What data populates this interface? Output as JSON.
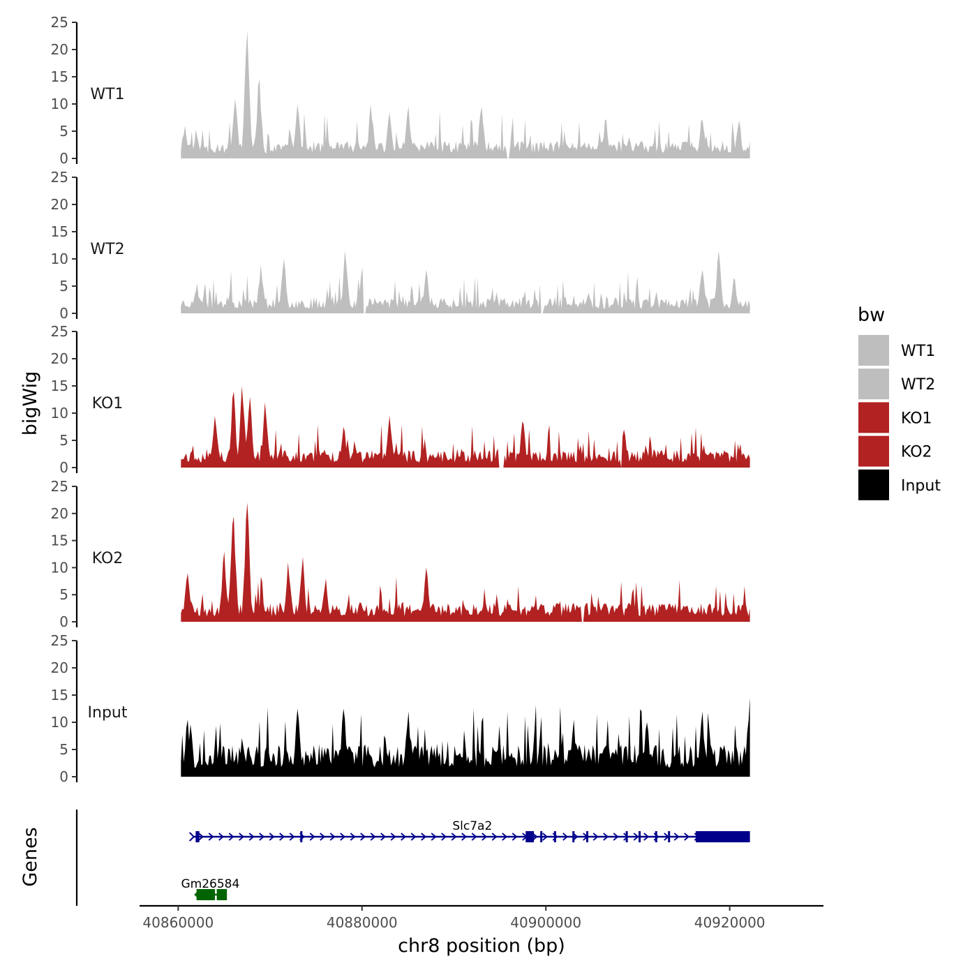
{
  "chart_data": {
    "type": "area",
    "ylabel": "bigWig",
    "genes_label": "Genes",
    "xlabel": "chr8 position (bp)",
    "xlim": [
      40855800,
      40930200
    ],
    "data_range": [
      40860300,
      40922200
    ],
    "x_ticks": [
      40860000,
      40880000,
      40900000,
      40920000
    ],
    "x_tick_labels": [
      "40860000",
      "40880000",
      "40900000",
      "40920000"
    ],
    "ylim": [
      0,
      25
    ],
    "y_ticks": [
      0,
      5,
      10,
      15,
      20,
      25
    ],
    "y_tick_labels": [
      "0",
      "5",
      "10",
      "15",
      "20",
      "25"
    ],
    "legend": {
      "title": "bw",
      "entries": [
        {
          "label": "WT1",
          "color": "#BEBEBE"
        },
        {
          "label": "WT2",
          "color": "#BEBEBE"
        },
        {
          "label": "KO1",
          "color": "#B22222"
        },
        {
          "label": "KO2",
          "color": "#B22222"
        },
        {
          "label": "Input",
          "color": "#000000"
        }
      ]
    },
    "tracks": [
      {
        "name": "WT1",
        "color": "#BEBEBE",
        "seed": 11,
        "base": 2.6,
        "noise": 3.2,
        "peaks": [
          {
            "x": 40867500,
            "y": 23.5
          },
          {
            "x": 40868800,
            "y": 14.5
          },
          {
            "x": 40866200,
            "y": 11
          },
          {
            "x": 40873000,
            "y": 10
          },
          {
            "x": 40881000,
            "y": 10
          },
          {
            "x": 40885000,
            "y": 9.5
          },
          {
            "x": 40893000,
            "y": 9.5
          },
          {
            "x": 40883000,
            "y": 8.5
          },
          {
            "x": 40906500,
            "y": 7
          },
          {
            "x": 40917000,
            "y": 7
          },
          {
            "x": 40921000,
            "y": 7
          },
          {
            "x": 40860700,
            "y": 6
          }
        ],
        "gaps": [
          [
            40895800,
            40896100
          ]
        ]
      },
      {
        "name": "WT2",
        "color": "#BEBEBE",
        "seed": 23,
        "base": 2.4,
        "noise": 3.0,
        "peaks": [
          {
            "x": 40878200,
            "y": 11.5
          },
          {
            "x": 40918800,
            "y": 11.5
          },
          {
            "x": 40871500,
            "y": 10
          },
          {
            "x": 40869000,
            "y": 9
          },
          {
            "x": 40880000,
            "y": 8.5
          },
          {
            "x": 40887000,
            "y": 8
          },
          {
            "x": 40917000,
            "y": 8
          },
          {
            "x": 40920500,
            "y": 6.5
          },
          {
            "x": 40862000,
            "y": 5.5
          }
        ],
        "gaps": [
          [
            40880100,
            40880400
          ],
          [
            40899400,
            40899700
          ]
        ]
      },
      {
        "name": "KO1",
        "color": "#B22222",
        "seed": 37,
        "base": 2.6,
        "noise": 3.2,
        "peaks": [
          {
            "x": 40866000,
            "y": 14
          },
          {
            "x": 40867000,
            "y": 15
          },
          {
            "x": 40867800,
            "y": 13
          },
          {
            "x": 40864000,
            "y": 9.5
          },
          {
            "x": 40869500,
            "y": 12
          },
          {
            "x": 40883000,
            "y": 9.5
          },
          {
            "x": 40897500,
            "y": 8.5
          },
          {
            "x": 40908500,
            "y": 7
          },
          {
            "x": 40878000,
            "y": 7.5
          }
        ],
        "gaps": [
          [
            40894800,
            40895400
          ],
          [
            40908100,
            40908300
          ]
        ]
      },
      {
        "name": "KO2",
        "color": "#B22222",
        "seed": 51,
        "base": 2.8,
        "noise": 3.2,
        "peaks": [
          {
            "x": 40866000,
            "y": 19.5
          },
          {
            "x": 40867500,
            "y": 22
          },
          {
            "x": 40865000,
            "y": 13
          },
          {
            "x": 40873500,
            "y": 12
          },
          {
            "x": 40872000,
            "y": 11
          },
          {
            "x": 40887000,
            "y": 10
          },
          {
            "x": 40861000,
            "y": 9
          },
          {
            "x": 40876000,
            "y": 8
          }
        ],
        "gaps": [
          [
            40903800,
            40904200
          ]
        ]
      },
      {
        "name": "Input",
        "color": "#000000",
        "seed": 67,
        "base": 4.8,
        "noise": 4.2,
        "peaks": [
          {
            "x": 40922150,
            "y": 14.5
          },
          {
            "x": 40873000,
            "y": 12.5
          },
          {
            "x": 40878000,
            "y": 12.5
          },
          {
            "x": 40885000,
            "y": 12
          },
          {
            "x": 40917000,
            "y": 12
          },
          {
            "x": 40861000,
            "y": 10.5
          },
          {
            "x": 40903000,
            "y": 10.5
          },
          {
            "x": 40911000,
            "y": 10
          }
        ],
        "gaps": []
      }
    ],
    "genes": [
      {
        "name": "Slc7a2",
        "color": "#00008B",
        "strand": "+",
        "row": 0,
        "start": 40861700,
        "end": 40922200,
        "exons": [
          [
            40861900,
            40862300
          ],
          [
            40897800,
            40898700
          ],
          [
            40916300,
            40922200
          ]
        ],
        "introns_marks": [
          40873400,
          40899500,
          40901000,
          40903000,
          40904500,
          40908800,
          40910200,
          40912000,
          40913400
        ]
      },
      {
        "name": "Gm26584",
        "color": "#006400",
        "strand": "-",
        "row": 1,
        "start": 40862000,
        "end": 40865300,
        "exons": [
          [
            40862000,
            40864000
          ],
          [
            40864200,
            40865300
          ]
        ]
      }
    ]
  }
}
